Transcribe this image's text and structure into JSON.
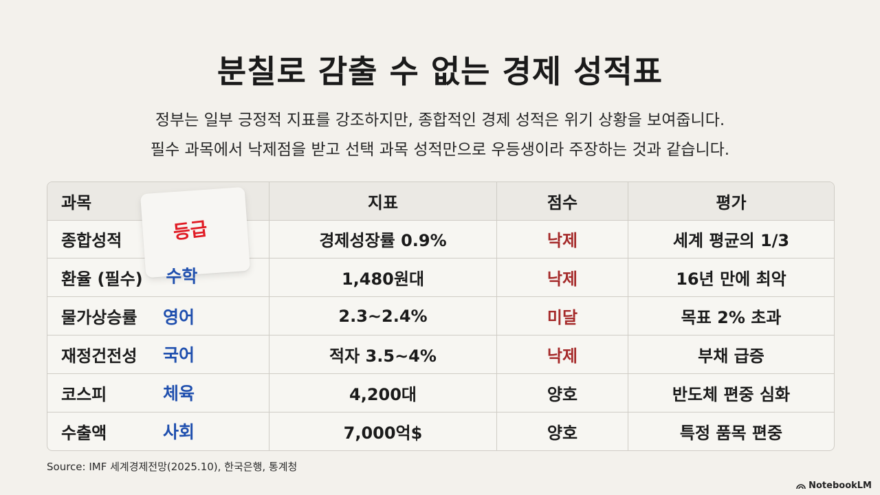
{
  "title": "분칠로 감출 수 없는 경제 성적표",
  "subtitle_line1": "정부는 일부 긍정적 지표를 강조하지만, 종합적인 경제 성적은 위기 상황을 보여줍니다.",
  "subtitle_line2": "필수 과목에서 낙제점을 받고 선택 과목 성적만으로 우등생이라 주장하는 것과 같습니다.",
  "table": {
    "headers": {
      "subject": "과목",
      "indicator": "지표",
      "score": "점수",
      "evaluation": "평가"
    },
    "rows": [
      {
        "subject": "종합성적",
        "alias": "",
        "indicator": "경제성장률 0.9%",
        "score": "낙제",
        "score_status": "bad",
        "evaluation": "세계 평균의 1/3"
      },
      {
        "subject": "환율 (필수)",
        "alias": "",
        "indicator": "1,480원대",
        "score": "낙제",
        "score_status": "bad",
        "evaluation": "16년 만에 최악"
      },
      {
        "subject": "물가상승률",
        "alias": "영어",
        "indicator": "2.3~2.4%",
        "score": "미달",
        "score_status": "bad",
        "evaluation": "목표 2% 초과"
      },
      {
        "subject": "재정건전성",
        "alias": "국어",
        "indicator": "적자 3.5~4%",
        "score": "낙제",
        "score_status": "bad",
        "evaluation": "부채 급증"
      },
      {
        "subject": "코스피",
        "alias": "체육",
        "indicator": "4,200대",
        "score": "양호",
        "score_status": "good",
        "evaluation": "반도체 편중 심화"
      },
      {
        "subject": "수출액",
        "alias": "사회",
        "indicator": "7,000억$",
        "score": "양호",
        "score_status": "good",
        "evaluation": "특정 품목 편중"
      }
    ]
  },
  "sticky_note": {
    "label": "등급",
    "alias": "수학"
  },
  "source": "Source: IMF 세계경제전망(2025.10), 한국은행, 통계청",
  "brand": "NotebookLM",
  "colors": {
    "background": "#f3f1ec",
    "bad_score": "#a52a2a",
    "alias_blue": "#1f4fae",
    "sticky_red": "#e01b24"
  }
}
